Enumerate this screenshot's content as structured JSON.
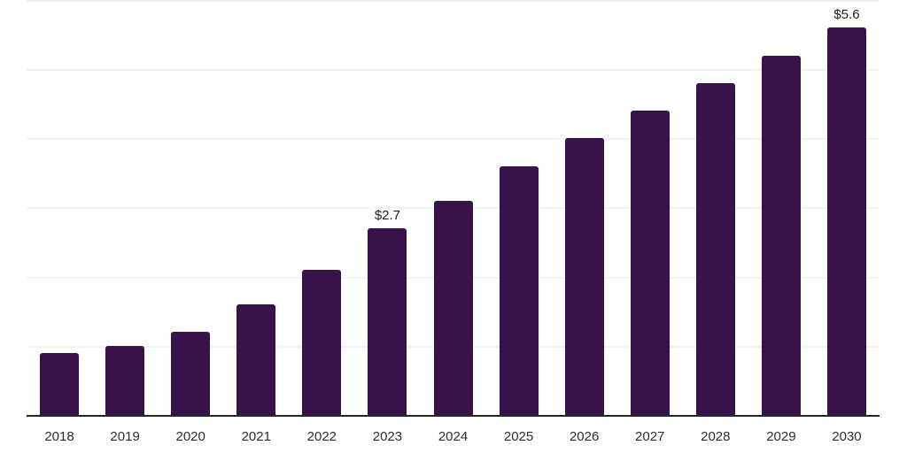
{
  "chart_data": {
    "type": "bar",
    "categories": [
      "2018",
      "2019",
      "2020",
      "2021",
      "2022",
      "2023",
      "2024",
      "2025",
      "2026",
      "2027",
      "2028",
      "2029",
      "2030"
    ],
    "values": [
      0.9,
      1.0,
      1.2,
      1.6,
      2.1,
      2.7,
      3.1,
      3.6,
      4.0,
      4.4,
      4.8,
      5.2,
      5.6
    ],
    "data_labels": [
      {
        "category": "2023",
        "text": "$2.7"
      },
      {
        "category": "2030",
        "text": "$5.6"
      }
    ],
    "title": "",
    "xlabel": "",
    "ylabel": "",
    "ylim": [
      0,
      6
    ],
    "y_gridline_step": 1,
    "grid": "horizontal",
    "legend": "none",
    "colors": {
      "bar": "#38124a",
      "gridline": "#f3f3f3",
      "axis_line": "#262626",
      "value_label": "#1c1c1c",
      "tick_label": "#2d2d2d",
      "background": "#ffffff"
    }
  }
}
